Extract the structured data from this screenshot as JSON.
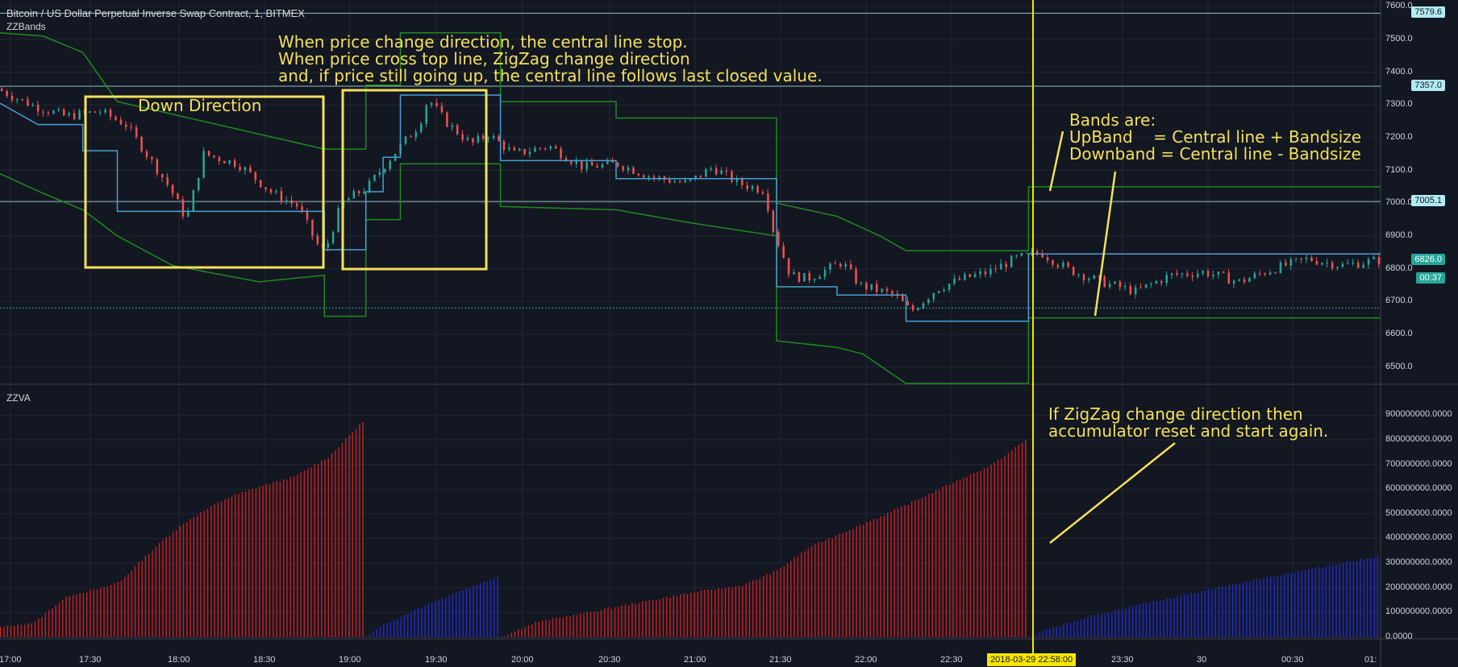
{
  "header": {
    "title": "Bitcoin / US Dollar Perpetual Inverse Swap Contract, 1, BITMEX",
    "top_indicator": "ZZBands",
    "bottom_indicator": "ZZVA"
  },
  "annotations": {
    "down_direction": "Down Direction",
    "price_note": "When price change direction, the central line stop.\nWhen price cross top line, ZigZag change direction\nand, if price still going up, the central line follows last closed value.",
    "bands_note": "Bands are:\nUpBand    = Central line + Bandsize\nDownband = Central line - Bandsize",
    "accum_note": "If ZigZag change direction then\naccumulator reset and start again."
  },
  "price_axis": {
    "ticks": [
      "7600.0",
      "7500.0",
      "7400.0",
      "7300.0",
      "7200.0",
      "7100.0",
      "7000.0",
      "6900.0",
      "6800.0",
      "6700.0",
      "6600.0",
      "6500.0"
    ],
    "tick_values": [
      7600,
      7500,
      7400,
      7300,
      7200,
      7100,
      7000,
      6900,
      6800,
      6700,
      6600,
      6500
    ],
    "tags": [
      {
        "label": "7579.6",
        "value": 7579.6,
        "bg": "#b2ebf2",
        "fg": "#131722"
      },
      {
        "label": "7357.0",
        "value": 7357.0,
        "bg": "#b2ebf2",
        "fg": "#131722"
      },
      {
        "label": "7005.1",
        "value": 7005.1,
        "bg": "#b2ebf2",
        "fg": "#131722"
      },
      {
        "label": "6826.0",
        "value": 6826.0,
        "bg": "#26a69a",
        "fg": "#ffffff"
      }
    ],
    "countdown": "00:37"
  },
  "volume_axis": {
    "ticks": [
      "900000000.0000",
      "800000000.0000",
      "700000000.0000",
      "600000000.0000",
      "500000000.0000",
      "400000000.0000",
      "300000000.0000",
      "200000000.0000",
      "100000000.0000",
      "0.0000"
    ],
    "tick_values": [
      900000000,
      800000000,
      700000000,
      600000000,
      500000000,
      400000000,
      300000000,
      200000000,
      100000000,
      0
    ]
  },
  "time_axis": {
    "ticks": [
      "17:00",
      "17:30",
      "18:00",
      "18:30",
      "19:00",
      "19:30",
      "20:00",
      "20:30",
      "21:00",
      "21:30",
      "22:00",
      "22:30",
      "23:30",
      "30",
      "00:30",
      "01:"
    ],
    "crosshair_label": "2018-03-29 22:58:00"
  },
  "colors": {
    "background": "#131722",
    "grid": "#232733",
    "up": "#26a69a",
    "down": "#ef5350",
    "central": "#4a9fd0",
    "band": "#1f8a1f",
    "annotation": "#f4e05a",
    "crosshair": "#f6e600",
    "vol_red": "#cc1f1f",
    "vol_blue": "#1f2ccc"
  },
  "chart_data": [
    {
      "type": "candlestick",
      "title": "",
      "x_range": [
        "17:00",
        "01:00"
      ],
      "ylim": [
        6450,
        7620
      ],
      "anchors_price": [
        [
          0,
          7350
        ],
        [
          20,
          7300
        ],
        [
          40,
          7265
        ],
        [
          60,
          7280
        ],
        [
          75,
          7240
        ],
        [
          85,
          7165
        ],
        [
          100,
          7050
        ],
        [
          110,
          6950
        ],
        [
          120,
          7150
        ],
        [
          140,
          7120
        ],
        [
          160,
          7030
        ],
        [
          175,
          6990
        ],
        [
          185,
          6880
        ],
        [
          190,
          6850
        ],
        [
          200,
          7000
        ],
        [
          215,
          7050
        ],
        [
          230,
          7150
        ],
        [
          245,
          7240
        ],
        [
          250,
          7320
        ],
        [
          260,
          7250
        ],
        [
          275,
          7180
        ],
        [
          285,
          7210
        ],
        [
          300,
          7150
        ],
        [
          320,
          7175
        ],
        [
          340,
          7110
        ],
        [
          360,
          7120
        ],
        [
          380,
          7080
        ],
        [
          400,
          7060
        ],
        [
          415,
          7110
        ],
        [
          430,
          7060
        ],
        [
          445,
          7040
        ],
        [
          450,
          6920
        ],
        [
          460,
          6780
        ],
        [
          470,
          6770
        ],
        [
          490,
          6820
        ],
        [
          500,
          6750
        ],
        [
          520,
          6720
        ],
        [
          530,
          6670
        ],
        [
          545,
          6740
        ],
        [
          560,
          6770
        ],
        [
          575,
          6790
        ],
        [
          590,
          6830
        ],
        [
          605,
          6850
        ],
        [
          620,
          6800
        ],
        [
          640,
          6760
        ],
        [
          660,
          6730
        ],
        [
          680,
          6780
        ],
        [
          700,
          6790
        ],
        [
          720,
          6760
        ],
        [
          740,
          6800
        ],
        [
          760,
          6830
        ],
        [
          780,
          6810
        ],
        [
          800,
          6826
        ]
      ],
      "central_line": [
        [
          0,
          7305
        ],
        [
          22,
          7240
        ],
        [
          48,
          7240
        ],
        [
          48,
          7160
        ],
        [
          68,
          7160
        ],
        [
          68,
          6975
        ],
        [
          188,
          6975
        ],
        [
          188,
          6858
        ],
        [
          212,
          6858
        ],
        [
          212,
          7035
        ],
        [
          222,
          7035
        ],
        [
          222,
          7140
        ],
        [
          232,
          7140
        ],
        [
          232,
          7330
        ],
        [
          290,
          7330
        ],
        [
          290,
          7130
        ],
        [
          357,
          7130
        ],
        [
          357,
          7075
        ],
        [
          450,
          7075
        ],
        [
          450,
          6745
        ],
        [
          485,
          6745
        ],
        [
          485,
          6720
        ],
        [
          525,
          6720
        ],
        [
          525,
          6640
        ],
        [
          596,
          6640
        ],
        [
          596,
          6845
        ],
        [
          800,
          6845
        ]
      ],
      "upper_band": [
        [
          0,
          7520
        ],
        [
          25,
          7510
        ],
        [
          48,
          7460
        ],
        [
          68,
          7310
        ],
        [
          188,
          7165
        ],
        [
          212,
          7165
        ],
        [
          212,
          7360
        ],
        [
          232,
          7360
        ],
        [
          232,
          7520
        ],
        [
          290,
          7520
        ],
        [
          290,
          7310
        ],
        [
          357,
          7310
        ],
        [
          357,
          7260
        ],
        [
          450,
          7260
        ],
        [
          450,
          7000
        ],
        [
          485,
          6960
        ],
        [
          510,
          6900
        ],
        [
          525,
          6855
        ],
        [
          596,
          6855
        ],
        [
          596,
          7050
        ],
        [
          800,
          7050
        ]
      ],
      "lower_band": [
        [
          0,
          7090
        ],
        [
          25,
          7030
        ],
        [
          48,
          6980
        ],
        [
          68,
          6900
        ],
        [
          100,
          6810
        ],
        [
          150,
          6760
        ],
        [
          188,
          6780
        ],
        [
          188,
          6655
        ],
        [
          212,
          6655
        ],
        [
          212,
          6950
        ],
        [
          232,
          6950
        ],
        [
          232,
          7120
        ],
        [
          290,
          7120
        ],
        [
          290,
          6990
        ],
        [
          357,
          6980
        ],
        [
          400,
          6940
        ],
        [
          450,
          6900
        ],
        [
          450,
          6580
        ],
        [
          485,
          6560
        ],
        [
          500,
          6540
        ],
        [
          525,
          6450
        ],
        [
          596,
          6450
        ],
        [
          596,
          6650
        ],
        [
          800,
          6650
        ]
      ]
    },
    {
      "type": "bar",
      "title": "",
      "x_range": [
        "17:00",
        "01:00"
      ],
      "ylim": [
        0,
        950000000
      ],
      "segments": [
        {
          "color": "red",
          "start": 0,
          "end": 212,
          "peak": 890000000
        },
        {
          "color": "blue",
          "start": 212,
          "end": 290,
          "peak": 250000000
        },
        {
          "color": "red",
          "start": 290,
          "end": 596,
          "peak": 810000000
        },
        {
          "color": "blue",
          "start": 596,
          "end": 800,
          "peak": 330000000
        }
      ],
      "anchors_red1": [
        [
          0,
          40
        ],
        [
          20,
          60
        ],
        [
          30,
          120
        ],
        [
          40,
          170
        ],
        [
          60,
          200
        ],
        [
          70,
          230
        ],
        [
          80,
          300
        ],
        [
          95,
          400
        ],
        [
          110,
          480
        ],
        [
          130,
          560
        ],
        [
          150,
          610
        ],
        [
          170,
          650
        ],
        [
          190,
          730
        ],
        [
          212,
          890
        ]
      ],
      "anchors_red2": [
        [
          290,
          0
        ],
        [
          310,
          60
        ],
        [
          340,
          100
        ],
        [
          370,
          140
        ],
        [
          400,
          180
        ],
        [
          430,
          210
        ],
        [
          450,
          270
        ],
        [
          470,
          370
        ],
        [
          500,
          460
        ],
        [
          520,
          520
        ],
        [
          550,
          620
        ],
        [
          575,
          700
        ],
        [
          596,
          810
        ]
      ]
    }
  ]
}
